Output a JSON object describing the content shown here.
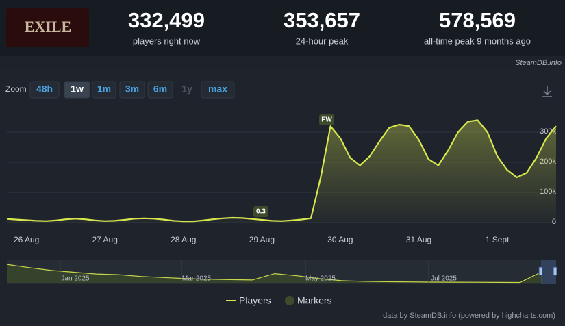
{
  "logo_text": "EXILE",
  "stats": [
    {
      "value": "332,499",
      "label": "players right now"
    },
    {
      "value": "353,657",
      "label": "24-hour peak"
    },
    {
      "value": "578,569",
      "label": "all-time peak 9 months ago"
    }
  ],
  "source": "SteamDB.info",
  "zoom": {
    "label": "Zoom",
    "options": [
      "48h",
      "1w",
      "1m",
      "3m",
      "6m",
      "1y",
      "max"
    ],
    "active": "1w",
    "disabled": "1y"
  },
  "chart_data": {
    "type": "line",
    "categories": [
      null,
      null,
      "26 Aug",
      null,
      null,
      null,
      null,
      null,
      null,
      null,
      "27 Aug",
      null,
      null,
      null,
      null,
      null,
      null,
      null,
      "28 Aug",
      null,
      null,
      null,
      null,
      null,
      null,
      null,
      "29 Aug",
      null,
      null,
      null,
      null,
      null,
      null,
      null,
      "30 Aug",
      null,
      null,
      null,
      null,
      null,
      null,
      null,
      "31 Aug",
      null,
      null,
      null,
      null,
      null,
      null,
      null,
      "1 Sept",
      null,
      null,
      null,
      null,
      null,
      null
    ],
    "series": [
      {
        "name": "Players",
        "color": "#d8e64e",
        "values": [
          12000,
          10000,
          8000,
          6000,
          5000,
          7000,
          11000,
          13000,
          11000,
          7000,
          5000,
          6000,
          9000,
          13000,
          14000,
          13000,
          10000,
          6000,
          4000,
          4000,
          7000,
          11000,
          14000,
          16000,
          15000,
          12000,
          9000,
          6000,
          5000,
          7000,
          10000,
          14000,
          150000,
          320000,
          280000,
          215000,
          190000,
          220000,
          270000,
          315000,
          325000,
          320000,
          275000,
          210000,
          190000,
          240000,
          300000,
          335000,
          340000,
          300000,
          220000,
          175000,
          150000,
          165000,
          215000,
          280000,
          320000
        ]
      }
    ],
    "markers": {
      "name": "Markers",
      "color": "#3d4a2b",
      "labels": [
        "0.3",
        "FW"
      ]
    },
    "ylim": [
      0,
      400000
    ],
    "yticks": [
      0,
      {
        "value": 100000,
        "label": "100k"
      },
      {
        "value": 200000,
        "label": "200k"
      },
      {
        "value": 300000,
        "label": "300k"
      }
    ],
    "grid": true,
    "navigator": {
      "labels": [
        "Jan 2025",
        "Mar 2025",
        "May 2025",
        "Jul 2025"
      ],
      "ylim": [
        0,
        600000
      ],
      "values": [
        520000,
        430000,
        350000,
        300000,
        250000,
        230000,
        180000,
        150000,
        120000,
        100000,
        90000,
        80000,
        260000,
        200000,
        120000,
        60000,
        40000,
        30000,
        25000,
        20000,
        18000,
        15000,
        12000,
        10000,
        320000
      ]
    },
    "credit": "data by SteamDB.info (powered by highcharts.com)"
  }
}
